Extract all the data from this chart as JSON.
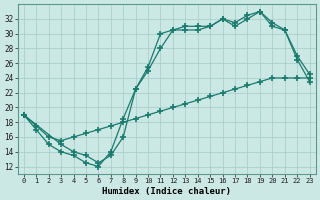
{
  "xlabel": "Humidex (Indice chaleur)",
  "background_color": "#cce8e4",
  "grid_color": "#aacfcb",
  "line_color": "#1a7a6e",
  "ylim": [
    11,
    34
  ],
  "xlim": [
    -0.5,
    23.5
  ],
  "yticks": [
    12,
    14,
    16,
    18,
    20,
    22,
    24,
    26,
    28,
    30,
    32
  ],
  "xticks": [
    0,
    1,
    2,
    3,
    4,
    5,
    6,
    7,
    8,
    9,
    10,
    11,
    12,
    13,
    14,
    15,
    16,
    17,
    18,
    19,
    20,
    21,
    22,
    23
  ],
  "line1_x": [
    0,
    1,
    2,
    3,
    4,
    5,
    6,
    7,
    8,
    9,
    10,
    11,
    12,
    13,
    14,
    15,
    16,
    17,
    18,
    19,
    20,
    21,
    22,
    23
  ],
  "line1_y": [
    19.0,
    17.0,
    15.0,
    14.0,
    13.5,
    12.5,
    12.0,
    14.0,
    18.5,
    22.5,
    25.0,
    28.0,
    30.5,
    30.5,
    30.5,
    31.0,
    32.0,
    31.0,
    32.0,
    33.0,
    31.0,
    30.5,
    26.5,
    23.5
  ],
  "line2_x": [
    0,
    3,
    4,
    5,
    6,
    7,
    8,
    9,
    10,
    11,
    12,
    13,
    14,
    15,
    16,
    17,
    18,
    19,
    20,
    21,
    22,
    23
  ],
  "line2_y": [
    19.0,
    15.0,
    14.0,
    13.5,
    12.5,
    13.5,
    16.0,
    22.5,
    25.5,
    30.0,
    30.5,
    31.0,
    31.0,
    31.0,
    32.0,
    31.5,
    32.5,
    33.0,
    31.5,
    30.5,
    27.0,
    24.5
  ],
  "line3_x": [
    0,
    1,
    2,
    3,
    4,
    5,
    6,
    7,
    8,
    9,
    10,
    11,
    12,
    13,
    14,
    15,
    16,
    17,
    18,
    19,
    20,
    21,
    22,
    23
  ],
  "line3_y": [
    19.0,
    17.5,
    16.0,
    15.5,
    16.0,
    16.5,
    17.0,
    17.5,
    18.0,
    18.5,
    19.0,
    19.5,
    20.0,
    20.5,
    21.0,
    21.5,
    22.0,
    22.5,
    23.0,
    23.5,
    24.0,
    24.0,
    24.0,
    24.0
  ]
}
